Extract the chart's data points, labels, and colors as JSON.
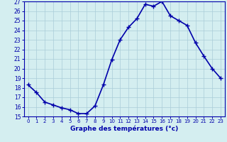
{
  "hours": [
    0,
    1,
    2,
    3,
    4,
    5,
    6,
    7,
    8,
    9,
    10,
    11,
    12,
    13,
    14,
    15,
    16,
    17,
    18,
    19,
    20,
    21,
    22,
    23
  ],
  "temperatures": [
    18.3,
    17.5,
    16.5,
    16.2,
    15.9,
    15.7,
    15.3,
    15.3,
    16.1,
    18.3,
    20.9,
    23.0,
    24.3,
    25.2,
    26.7,
    26.5,
    27.0,
    25.5,
    25.0,
    24.5,
    22.7,
    21.3,
    20.0,
    19.0
  ],
  "line_color": "#0000aa",
  "marker": "+",
  "marker_size": 4,
  "marker_linewidth": 1.0,
  "bg_color": "#d4eef0",
  "grid_color": "#aaccd8",
  "xlabel": "Graphe des températures (°c)",
  "xlabel_color": "#0000aa",
  "tick_color": "#0000aa",
  "ylim": [
    15,
    27
  ],
  "xlim": [
    -0.5,
    23.5
  ],
  "yticks": [
    15,
    16,
    17,
    18,
    19,
    20,
    21,
    22,
    23,
    24,
    25,
    26,
    27
  ],
  "xticks": [
    0,
    1,
    2,
    3,
    4,
    5,
    6,
    7,
    8,
    9,
    10,
    11,
    12,
    13,
    14,
    15,
    16,
    17,
    18,
    19,
    20,
    21,
    22,
    23
  ],
  "line_width": 1.2
}
